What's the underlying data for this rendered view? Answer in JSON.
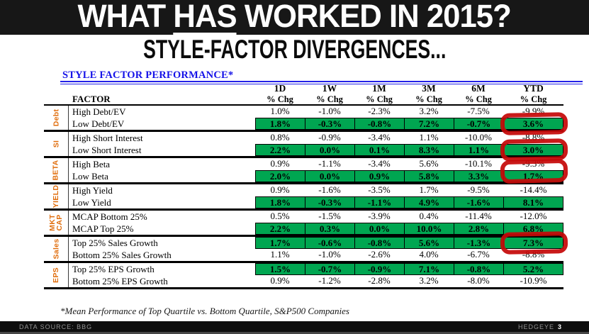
{
  "banner": {
    "title_pre": "WHAT ",
    "title_underlined": "HAS",
    "title_post": " WORKED IN 2015?"
  },
  "subtitle": "STYLE-FACTOR DIVERGENCES...",
  "footnote": "*Mean Performance of Top Quartile vs. Bottom Quartile, S&P500 Companies",
  "footer": {
    "data_source": "DATA SOURCE: BBG",
    "brand": "HEDGEYE",
    "page": "3"
  },
  "colors": {
    "highlight_green": "#00a651",
    "group_label_orange": "#e06d0c",
    "heading_blue": "#1512e8",
    "annotation_red": "#c50909",
    "banner_black": "#171717"
  },
  "chart_data": {
    "type": "table",
    "title": "STYLE FACTOR PERFORMANCE*",
    "row_header": "FACTOR",
    "columns": [
      "1D",
      "1W",
      "1M",
      "3M",
      "6M",
      "YTD"
    ],
    "column_unit": "% Chg",
    "annotation": "hand-drawn red circles on YTD cells of outperforming factor rows",
    "groups": [
      {
        "label": "Debt",
        "rows": [
          {
            "factor": "High Debt/EV",
            "values": [
              "1.0%",
              "-1.0%",
              "-2.3%",
              "3.2%",
              "-7.5%",
              "-9.9%"
            ],
            "highlighted": false,
            "ytd_circled": false
          },
          {
            "factor": "Low Debt/EV",
            "values": [
              "1.8%",
              "-0.3%",
              "-0.8%",
              "7.2%",
              "-0.7%",
              "3.6%"
            ],
            "highlighted": true,
            "ytd_circled": true
          }
        ]
      },
      {
        "label": "SI",
        "rows": [
          {
            "factor": "High Short Interest",
            "values": [
              "0.8%",
              "-0.9%",
              "-3.4%",
              "1.1%",
              "-10.0%",
              "-8.8%"
            ],
            "highlighted": false,
            "ytd_circled": false
          },
          {
            "factor": "Low Short Interest",
            "values": [
              "2.2%",
              "0.0%",
              "0.1%",
              "8.3%",
              "1.1%",
              "3.0%"
            ],
            "highlighted": true,
            "ytd_circled": true
          }
        ]
      },
      {
        "label": "BETA",
        "rows": [
          {
            "factor": "High Beta",
            "values": [
              "0.9%",
              "-1.1%",
              "-3.4%",
              "5.6%",
              "-10.1%",
              "-9.3%"
            ],
            "highlighted": false,
            "ytd_circled": false
          },
          {
            "factor": "Low Beta",
            "values": [
              "2.0%",
              "0.0%",
              "0.9%",
              "5.8%",
              "3.3%",
              "1.7%"
            ],
            "highlighted": true,
            "ytd_circled": true,
            "circle_shift_up": true
          }
        ]
      },
      {
        "label": "YIELD",
        "rows": [
          {
            "factor": "High Yield",
            "values": [
              "0.9%",
              "-1.6%",
              "-3.5%",
              "1.7%",
              "-9.5%",
              "-14.4%"
            ],
            "highlighted": false,
            "ytd_circled": false
          },
          {
            "factor": "Low Yield",
            "values": [
              "1.8%",
              "-0.3%",
              "-1.1%",
              "4.9%",
              "-1.6%",
              "8.1%"
            ],
            "highlighted": true,
            "ytd_circled": false
          }
        ]
      },
      {
        "label": "MKT\nCAP",
        "rows": [
          {
            "factor": "MCAP Bottom 25%",
            "values": [
              "0.5%",
              "-1.5%",
              "-3.9%",
              "0.4%",
              "-11.4%",
              "-12.0%"
            ],
            "highlighted": false,
            "ytd_circled": false
          },
          {
            "factor": "MCAP Top 25%",
            "values": [
              "2.2%",
              "0.3%",
              "0.0%",
              "10.0%",
              "2.8%",
              "6.8%"
            ],
            "highlighted": true,
            "ytd_circled": false
          }
        ]
      },
      {
        "label": "Sales",
        "rows": [
          {
            "factor": "Top 25% Sales Growth",
            "values": [
              "1.7%",
              "-0.6%",
              "-0.8%",
              "5.6%",
              "-1.3%",
              "7.3%"
            ],
            "highlighted": true,
            "ytd_circled": true
          },
          {
            "factor": "Bottom 25% Sales Growth",
            "values": [
              "1.1%",
              "-1.0%",
              "-2.6%",
              "4.0%",
              "-6.7%",
              "-8.8%"
            ],
            "highlighted": false,
            "ytd_circled": false
          }
        ]
      },
      {
        "label": "EPS",
        "rows": [
          {
            "factor": "Top 25% EPS Growth",
            "values": [
              "1.5%",
              "-0.7%",
              "-0.9%",
              "7.1%",
              "-0.8%",
              "5.2%"
            ],
            "highlighted": true,
            "ytd_circled": false
          },
          {
            "factor": "Bottom 25% EPS Growth",
            "values": [
              "0.9%",
              "-1.2%",
              "-2.8%",
              "3.2%",
              "-8.0%",
              "-10.9%"
            ],
            "highlighted": false,
            "ytd_circled": false
          }
        ]
      }
    ]
  }
}
